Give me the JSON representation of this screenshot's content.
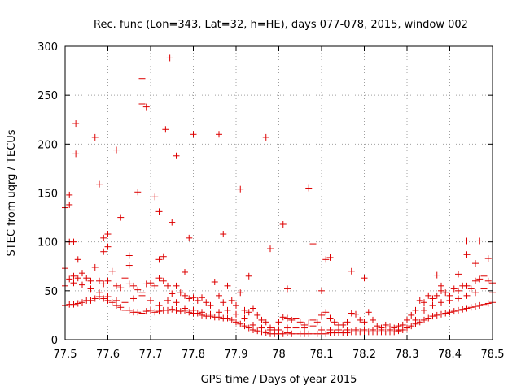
{
  "chart_data": {
    "type": "scatter",
    "title": "Rec. func (Lon=343, Lat=32, h=HE), days 077-078, 2015, window 002",
    "xlabel": "GPS time / Days of year 2015",
    "ylabel": "STEC from uqrg / TECUs",
    "xlim": [
      77.5,
      78.5
    ],
    "ylim": [
      0,
      300
    ],
    "xticks": [
      "77.5",
      "77.6",
      "77.7",
      "77.8",
      "77.9",
      "78",
      "78.1",
      "78.2",
      "78.3",
      "78.4",
      "78.5"
    ],
    "yticks": [
      "0",
      "50",
      "100",
      "150",
      "200",
      "250",
      "300"
    ],
    "grid": true,
    "marker": "+",
    "color": "#dd0000",
    "series": [
      {
        "points": [
          [
            77.5,
            135
          ],
          [
            77.5,
            73
          ],
          [
            77.51,
            148
          ],
          [
            77.51,
            138
          ],
          [
            77.51,
            100
          ],
          [
            77.52,
            100
          ],
          [
            77.525,
            221
          ],
          [
            77.525,
            190
          ],
          [
            77.53,
            82
          ],
          [
            77.57,
            207
          ],
          [
            77.58,
            159
          ],
          [
            77.59,
            104
          ],
          [
            77.59,
            90
          ],
          [
            77.6,
            108
          ],
          [
            77.6,
            95
          ],
          [
            77.62,
            194
          ],
          [
            77.63,
            125
          ],
          [
            77.65,
            86
          ],
          [
            77.65,
            76
          ],
          [
            77.67,
            151
          ],
          [
            77.68,
            267
          ],
          [
            77.68,
            241
          ],
          [
            77.69,
            238
          ],
          [
            77.71,
            146
          ],
          [
            77.72,
            131
          ],
          [
            77.72,
            82
          ],
          [
            77.73,
            85
          ],
          [
            77.735,
            215
          ],
          [
            77.745,
            288
          ],
          [
            77.75,
            120
          ],
          [
            77.76,
            188
          ],
          [
            77.78,
            69
          ],
          [
            77.79,
            104
          ],
          [
            77.8,
            210
          ],
          [
            77.86,
            210
          ],
          [
            77.87,
            108
          ],
          [
            77.91,
            154
          ],
          [
            77.93,
            65
          ],
          [
            77.97,
            207
          ],
          [
            77.98,
            93
          ],
          [
            78.01,
            118
          ],
          [
            78.02,
            52
          ],
          [
            78.07,
            155
          ],
          [
            78.08,
            98
          ],
          [
            78.1,
            50
          ],
          [
            78.11,
            82
          ],
          [
            78.12,
            84
          ],
          [
            78.17,
            70
          ],
          [
            78.2,
            63
          ],
          [
            78.37,
            66
          ],
          [
            78.38,
            55
          ],
          [
            78.42,
            67
          ],
          [
            78.44,
            101
          ],
          [
            78.44,
            87
          ],
          [
            78.46,
            78
          ],
          [
            78.47,
            101
          ],
          [
            78.49,
            83
          ]
        ]
      },
      {
        "points": [
          [
            77.5,
            55
          ],
          [
            77.51,
            62
          ],
          [
            77.52,
            65
          ],
          [
            77.53,
            63
          ],
          [
            77.54,
            68
          ],
          [
            77.55,
            63
          ],
          [
            77.56,
            60
          ],
          [
            77.57,
            74
          ],
          [
            77.58,
            60
          ],
          [
            77.59,
            57
          ],
          [
            77.6,
            60
          ],
          [
            77.61,
            70
          ],
          [
            77.62,
            55
          ],
          [
            77.63,
            53
          ],
          [
            77.64,
            63
          ],
          [
            77.65,
            57
          ],
          [
            77.66,
            55
          ],
          [
            77.67,
            51
          ],
          [
            77.68,
            48
          ],
          [
            77.69,
            57
          ],
          [
            77.7,
            58
          ],
          [
            77.71,
            55
          ],
          [
            77.72,
            63
          ],
          [
            77.73,
            60
          ],
          [
            77.74,
            55
          ],
          [
            77.75,
            47
          ],
          [
            77.76,
            55
          ],
          [
            77.77,
            48
          ],
          [
            77.78,
            45
          ],
          [
            77.79,
            42
          ],
          [
            77.8,
            43
          ],
          [
            77.81,
            40
          ],
          [
            77.82,
            43
          ],
          [
            77.83,
            38
          ],
          [
            77.84,
            35
          ],
          [
            77.85,
            59
          ],
          [
            77.86,
            45
          ],
          [
            77.87,
            38
          ],
          [
            77.88,
            55
          ],
          [
            77.89,
            40
          ],
          [
            77.9,
            35
          ],
          [
            77.91,
            48
          ],
          [
            77.92,
            30
          ],
          [
            77.93,
            28
          ],
          [
            77.94,
            32
          ],
          [
            77.95,
            25
          ],
          [
            77.96,
            20
          ],
          [
            77.97,
            18
          ],
          [
            77.98,
            12
          ],
          [
            77.99,
            10
          ],
          [
            78.0,
            18
          ],
          [
            78.01,
            23
          ],
          [
            78.02,
            22
          ],
          [
            78.03,
            20
          ],
          [
            78.04,
            22
          ],
          [
            78.05,
            18
          ],
          [
            78.06,
            15
          ],
          [
            78.07,
            17
          ],
          [
            78.08,
            20
          ],
          [
            78.09,
            18
          ],
          [
            78.1,
            25
          ],
          [
            78.11,
            28
          ],
          [
            78.12,
            22
          ],
          [
            78.13,
            18
          ],
          [
            78.14,
            15
          ],
          [
            78.15,
            15
          ],
          [
            78.16,
            18
          ],
          [
            78.17,
            27
          ],
          [
            78.18,
            26
          ],
          [
            78.19,
            20
          ],
          [
            78.2,
            18
          ],
          [
            78.21,
            28
          ],
          [
            78.22,
            20
          ],
          [
            78.23,
            14
          ],
          [
            78.24,
            12
          ],
          [
            78.25,
            15
          ],
          [
            78.26,
            13
          ],
          [
            78.27,
            12
          ],
          [
            78.28,
            14
          ],
          [
            78.29,
            15
          ],
          [
            78.3,
            20
          ],
          [
            78.31,
            25
          ],
          [
            78.32,
            30
          ],
          [
            78.33,
            40
          ],
          [
            78.34,
            38
          ],
          [
            78.35,
            45
          ],
          [
            78.36,
            42
          ],
          [
            78.37,
            45
          ],
          [
            78.38,
            50
          ],
          [
            78.39,
            48
          ],
          [
            78.4,
            45
          ],
          [
            78.41,
            52
          ],
          [
            78.42,
            50
          ],
          [
            78.43,
            55
          ],
          [
            78.44,
            55
          ],
          [
            78.45,
            52
          ],
          [
            78.46,
            60
          ],
          [
            78.47,
            62
          ],
          [
            78.48,
            65
          ],
          [
            78.49,
            60
          ],
          [
            78.5,
            58
          ]
        ]
      },
      {
        "points": [
          [
            77.5,
            35
          ],
          [
            77.51,
            36
          ],
          [
            77.52,
            36
          ],
          [
            77.53,
            37
          ],
          [
            77.54,
            38
          ],
          [
            77.55,
            40
          ],
          [
            77.56,
            40
          ],
          [
            77.57,
            42
          ],
          [
            77.58,
            44
          ],
          [
            77.59,
            42
          ],
          [
            77.6,
            40
          ],
          [
            77.61,
            38
          ],
          [
            77.62,
            35
          ],
          [
            77.63,
            33
          ],
          [
            77.64,
            30
          ],
          [
            77.65,
            30
          ],
          [
            77.66,
            28
          ],
          [
            77.67,
            28
          ],
          [
            77.68,
            27
          ],
          [
            77.69,
            29
          ],
          [
            77.7,
            30
          ],
          [
            77.71,
            28
          ],
          [
            77.72,
            29
          ],
          [
            77.73,
            30
          ],
          [
            77.74,
            30
          ],
          [
            77.75,
            31
          ],
          [
            77.76,
            30
          ],
          [
            77.77,
            29
          ],
          [
            77.78,
            30
          ],
          [
            77.79,
            28
          ],
          [
            77.8,
            27
          ],
          [
            77.81,
            27
          ],
          [
            77.82,
            25
          ],
          [
            77.83,
            24
          ],
          [
            77.84,
            24
          ],
          [
            77.85,
            23
          ],
          [
            77.86,
            23
          ],
          [
            77.87,
            22
          ],
          [
            77.88,
            22
          ],
          [
            77.89,
            20
          ],
          [
            77.9,
            18
          ],
          [
            77.91,
            16
          ],
          [
            77.92,
            14
          ],
          [
            77.93,
            12
          ],
          [
            77.94,
            10
          ],
          [
            77.95,
            9
          ],
          [
            77.96,
            8
          ],
          [
            77.97,
            7
          ],
          [
            77.98,
            6
          ],
          [
            77.99,
            6
          ],
          [
            78.0,
            6
          ],
          [
            78.01,
            6
          ],
          [
            78.02,
            7
          ],
          [
            78.03,
            6
          ],
          [
            78.04,
            6
          ],
          [
            78.05,
            6
          ],
          [
            78.06,
            6
          ],
          [
            78.07,
            6
          ],
          [
            78.08,
            6
          ],
          [
            78.09,
            6
          ],
          [
            78.1,
            6
          ],
          [
            78.11,
            6
          ],
          [
            78.12,
            7
          ],
          [
            78.13,
            7
          ],
          [
            78.14,
            7
          ],
          [
            78.15,
            7
          ],
          [
            78.16,
            7
          ],
          [
            78.17,
            8
          ],
          [
            78.18,
            8
          ],
          [
            78.19,
            8
          ],
          [
            78.2,
            8
          ],
          [
            78.21,
            8
          ],
          [
            78.22,
            8
          ],
          [
            78.23,
            8
          ],
          [
            78.24,
            8
          ],
          [
            78.25,
            8
          ],
          [
            78.26,
            8
          ],
          [
            78.27,
            8
          ],
          [
            78.28,
            9
          ],
          [
            78.29,
            10
          ],
          [
            78.3,
            12
          ],
          [
            78.31,
            14
          ],
          [
            78.32,
            16
          ],
          [
            78.33,
            18
          ],
          [
            78.34,
            20
          ],
          [
            78.35,
            22
          ],
          [
            78.36,
            24
          ],
          [
            78.37,
            25
          ],
          [
            78.38,
            26
          ],
          [
            78.39,
            27
          ],
          [
            78.4,
            28
          ],
          [
            78.41,
            29
          ],
          [
            78.42,
            30
          ],
          [
            78.43,
            31
          ],
          [
            78.44,
            32
          ],
          [
            78.45,
            33
          ],
          [
            78.46,
            34
          ],
          [
            78.47,
            35
          ],
          [
            78.48,
            36
          ],
          [
            78.49,
            37
          ],
          [
            78.5,
            38
          ]
        ]
      },
      {
        "points": [
          [
            77.52,
            58
          ],
          [
            77.54,
            56
          ],
          [
            77.56,
            52
          ],
          [
            77.58,
            48
          ],
          [
            77.6,
            44
          ],
          [
            77.62,
            40
          ],
          [
            77.64,
            38
          ],
          [
            77.66,
            42
          ],
          [
            77.68,
            45
          ],
          [
            77.7,
            40
          ],
          [
            77.72,
            35
          ],
          [
            77.74,
            40
          ],
          [
            77.76,
            38
          ],
          [
            77.78,
            32
          ],
          [
            77.8,
            30
          ],
          [
            77.82,
            28
          ],
          [
            77.84,
            26
          ],
          [
            77.86,
            28
          ],
          [
            77.88,
            30
          ],
          [
            77.9,
            26
          ],
          [
            77.92,
            22
          ],
          [
            77.94,
            15
          ],
          [
            77.96,
            12
          ],
          [
            77.98,
            10
          ],
          [
            78.0,
            10
          ],
          [
            78.02,
            12
          ],
          [
            78.04,
            12
          ],
          [
            78.06,
            12
          ],
          [
            78.08,
            14
          ],
          [
            78.1,
            10
          ],
          [
            78.12,
            10
          ],
          [
            78.14,
            10
          ],
          [
            78.16,
            10
          ],
          [
            78.18,
            10
          ],
          [
            78.2,
            10
          ],
          [
            78.22,
            10
          ],
          [
            78.24,
            10
          ],
          [
            78.26,
            10
          ],
          [
            78.28,
            10
          ],
          [
            78.3,
            12
          ],
          [
            78.32,
            20
          ],
          [
            78.34,
            30
          ],
          [
            78.36,
            35
          ],
          [
            78.38,
            38
          ],
          [
            78.4,
            40
          ],
          [
            78.42,
            42
          ],
          [
            78.44,
            45
          ],
          [
            78.46,
            48
          ],
          [
            78.48,
            52
          ],
          [
            78.5,
            48
          ]
        ]
      }
    ]
  }
}
